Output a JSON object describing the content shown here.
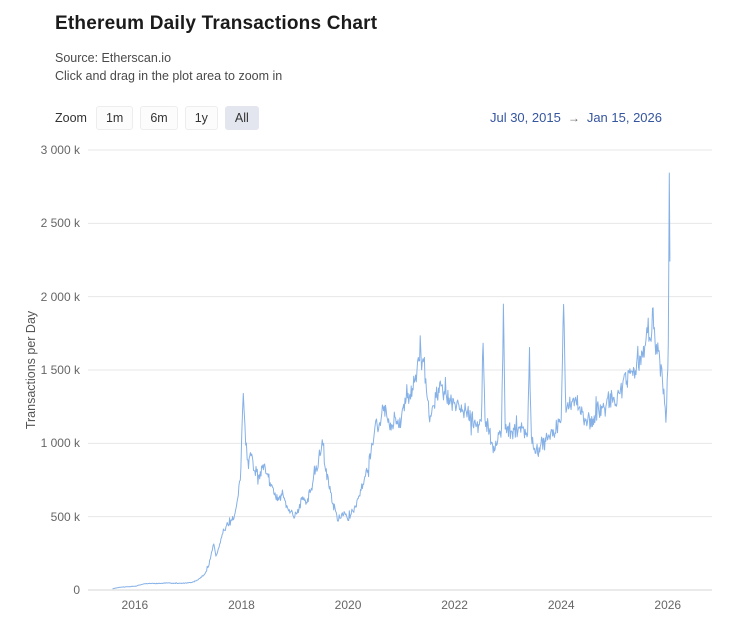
{
  "header": {
    "title": "Ethereum Daily Transactions Chart",
    "source": "Source: Etherscan.io",
    "hint": "Click and drag in the plot area to zoom in"
  },
  "toolbar": {
    "zoom_label": "Zoom",
    "buttons": [
      {
        "label": "1m",
        "active": false
      },
      {
        "label": "6m",
        "active": false
      },
      {
        "label": "1y",
        "active": false
      },
      {
        "label": "All",
        "active": true
      }
    ],
    "range": {
      "from": "Jul 30, 2015",
      "arrow": "→",
      "to": "Jan 15, 2026"
    }
  },
  "colors": {
    "line": "#86b1e7",
    "range_text": "#35559f",
    "active_button_bg": "#e3e5ef",
    "grid": "#e7e7e7",
    "axis_line": "#d4d4d4"
  },
  "chart_data": {
    "type": "line",
    "title": "Ethereum Daily Transactions Chart",
    "xlabel": "",
    "ylabel": "Transactions per Day",
    "legend": "none",
    "grid": true,
    "x_unit": "year (fractional)",
    "y_unit": "thousand transactions per day",
    "ylim": [
      0,
      3000
    ],
    "x_plot_range": [
      2015.12,
      2026.83
    ],
    "x_data_range_labels": [
      "Jul 30, 2015",
      "Jan 15, 2026"
    ],
    "yticks": [
      {
        "v": 0,
        "label": "0"
      },
      {
        "v": 500,
        "label": "500 k"
      },
      {
        "v": 1000,
        "label": "1 000 k"
      },
      {
        "v": 1500,
        "label": "1 500 k"
      },
      {
        "v": 2000,
        "label": "2 000 k"
      },
      {
        "v": 2500,
        "label": "2 500 k"
      },
      {
        "v": 3000,
        "label": "3 000 k"
      }
    ],
    "xticks": [
      2016,
      2018,
      2020,
      2022,
      2024,
      2026
    ],
    "noise": {
      "seed": 7,
      "rel_amp": 0.05,
      "spike_prob": 0.08,
      "spike_amp": 0.09,
      "step_years": 0.012
    },
    "series": [
      {
        "name": "Transactions per Day (k)",
        "color": "#86b1e7",
        "points": [
          [
            2015.58,
            8
          ],
          [
            2015.7,
            18
          ],
          [
            2015.85,
            22
          ],
          [
            2016.0,
            25
          ],
          [
            2016.1,
            35
          ],
          [
            2016.2,
            42
          ],
          [
            2016.35,
            45
          ],
          [
            2016.5,
            45
          ],
          [
            2016.6,
            48
          ],
          [
            2016.75,
            45
          ],
          [
            2016.9,
            46
          ],
          [
            2017.0,
            48
          ],
          [
            2017.1,
            55
          ],
          [
            2017.2,
            75
          ],
          [
            2017.3,
            105
          ],
          [
            2017.38,
            160
          ],
          [
            2017.44,
            260
          ],
          [
            2017.48,
            310
          ],
          [
            2017.52,
            230
          ],
          [
            2017.58,
            290
          ],
          [
            2017.65,
            390
          ],
          [
            2017.72,
            440
          ],
          [
            2017.8,
            470
          ],
          [
            2017.88,
            520
          ],
          [
            2017.94,
            640
          ],
          [
            2017.99,
            820
          ],
          [
            2018.02,
            1200
          ],
          [
            2018.035,
            1350
          ],
          [
            2018.05,
            1230
          ],
          [
            2018.08,
            1000
          ],
          [
            2018.12,
            880
          ],
          [
            2018.18,
            920
          ],
          [
            2018.25,
            820
          ],
          [
            2018.32,
            780
          ],
          [
            2018.4,
            840
          ],
          [
            2018.48,
            800
          ],
          [
            2018.55,
            720
          ],
          [
            2018.62,
            640
          ],
          [
            2018.7,
            610
          ],
          [
            2018.78,
            660
          ],
          [
            2018.85,
            570
          ],
          [
            2018.92,
            540
          ],
          [
            2019.0,
            500
          ],
          [
            2019.08,
            560
          ],
          [
            2019.15,
            630
          ],
          [
            2019.22,
            590
          ],
          [
            2019.3,
            680
          ],
          [
            2019.38,
            780
          ],
          [
            2019.45,
            900
          ],
          [
            2019.5,
            960
          ],
          [
            2019.53,
            1000
          ],
          [
            2019.58,
            820
          ],
          [
            2019.65,
            700
          ],
          [
            2019.72,
            590
          ],
          [
            2019.8,
            480
          ],
          [
            2019.88,
            520
          ],
          [
            2019.95,
            510
          ],
          [
            2020.0,
            470
          ],
          [
            2020.06,
            520
          ],
          [
            2020.12,
            560
          ],
          [
            2020.2,
            640
          ],
          [
            2020.28,
            730
          ],
          [
            2020.35,
            820
          ],
          [
            2020.42,
            900
          ],
          [
            2020.48,
            1020
          ],
          [
            2020.52,
            1140
          ],
          [
            2020.56,
            1080
          ],
          [
            2020.62,
            1180
          ],
          [
            2020.68,
            1240
          ],
          [
            2020.75,
            1160
          ],
          [
            2020.82,
            1120
          ],
          [
            2020.88,
            1180
          ],
          [
            2020.95,
            1100
          ],
          [
            2021.02,
            1220
          ],
          [
            2021.08,
            1280
          ],
          [
            2021.15,
            1320
          ],
          [
            2021.22,
            1380
          ],
          [
            2021.28,
            1440
          ],
          [
            2021.33,
            1540
          ],
          [
            2021.355,
            1720
          ],
          [
            2021.38,
            1500
          ],
          [
            2021.42,
            1560
          ],
          [
            2021.46,
            1420
          ],
          [
            2021.52,
            1180
          ],
          [
            2021.58,
            1260
          ],
          [
            2021.65,
            1320
          ],
          [
            2021.72,
            1400
          ],
          [
            2021.78,
            1340
          ],
          [
            2021.85,
            1320
          ],
          [
            2021.92,
            1280
          ],
          [
            2022.0,
            1260
          ],
          [
            2022.08,
            1280
          ],
          [
            2022.15,
            1240
          ],
          [
            2022.22,
            1220
          ],
          [
            2022.3,
            1180
          ],
          [
            2022.38,
            1150
          ],
          [
            2022.45,
            1120
          ],
          [
            2022.5,
            1160
          ],
          [
            2022.535,
            1700
          ],
          [
            2022.57,
            1160
          ],
          [
            2022.63,
            1120
          ],
          [
            2022.7,
            1000
          ],
          [
            2022.76,
            960
          ],
          [
            2022.82,
            1060
          ],
          [
            2022.88,
            1090
          ],
          [
            2022.915,
            1930
          ],
          [
            2022.95,
            1090
          ],
          [
            2023.0,
            1100
          ],
          [
            2023.08,
            1070
          ],
          [
            2023.15,
            1090
          ],
          [
            2023.22,
            1110
          ],
          [
            2023.3,
            1080
          ],
          [
            2023.37,
            1060
          ],
          [
            2023.405,
            1640
          ],
          [
            2023.44,
            1040
          ],
          [
            2023.5,
            980
          ],
          [
            2023.56,
            940
          ],
          [
            2023.62,
            990
          ],
          [
            2023.7,
            1030
          ],
          [
            2023.78,
            1060
          ],
          [
            2023.85,
            1080
          ],
          [
            2023.92,
            1110
          ],
          [
            2024.0,
            1160
          ],
          [
            2024.045,
            1960
          ],
          [
            2024.09,
            1200
          ],
          [
            2024.15,
            1260
          ],
          [
            2024.22,
            1310
          ],
          [
            2024.28,
            1280
          ],
          [
            2024.35,
            1240
          ],
          [
            2024.42,
            1160
          ],
          [
            2024.48,
            1120
          ],
          [
            2024.55,
            1150
          ],
          [
            2024.62,
            1190
          ],
          [
            2024.7,
            1230
          ],
          [
            2024.78,
            1260
          ],
          [
            2024.85,
            1290
          ],
          [
            2024.92,
            1310
          ],
          [
            2025.0,
            1300
          ],
          [
            2025.08,
            1340
          ],
          [
            2025.15,
            1380
          ],
          [
            2025.22,
            1420
          ],
          [
            2025.3,
            1460
          ],
          [
            2025.38,
            1500
          ],
          [
            2025.45,
            1540
          ],
          [
            2025.52,
            1600
          ],
          [
            2025.58,
            1680
          ],
          [
            2025.62,
            1820
          ],
          [
            2025.66,
            1700
          ],
          [
            2025.7,
            1760
          ],
          [
            2025.725,
            1950
          ],
          [
            2025.76,
            1700
          ],
          [
            2025.8,
            1620
          ],
          [
            2025.85,
            1560
          ],
          [
            2025.9,
            1440
          ],
          [
            2025.94,
            1280
          ],
          [
            2025.965,
            1130
          ],
          [
            2025.99,
            1450
          ],
          [
            2026.01,
            1700
          ],
          [
            2026.028,
            2820
          ],
          [
            2026.04,
            2240
          ]
        ]
      }
    ]
  }
}
